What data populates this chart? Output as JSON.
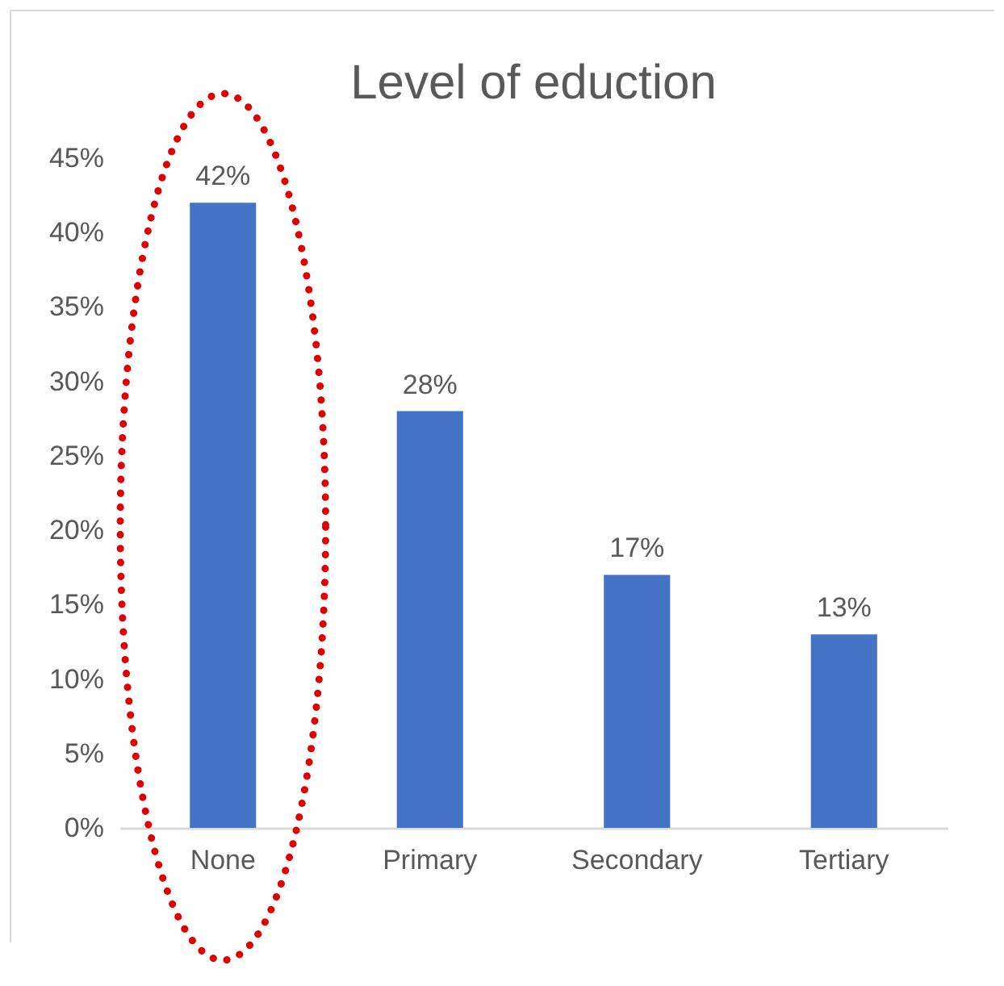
{
  "chart_data": {
    "type": "bar",
    "title": "Level of eduction",
    "categories": [
      "None",
      "Primary",
      "Secondary",
      "Tertiary"
    ],
    "values": [
      42,
      28,
      17,
      13
    ],
    "value_labels": [
      "42%",
      "28%",
      "17%",
      "13%"
    ],
    "color": "#4472c4",
    "ylim": [
      0,
      45
    ],
    "yticks": [
      {
        "value": 0,
        "label": "0%"
      },
      {
        "value": 5,
        "label": "5%"
      },
      {
        "value": 10,
        "label": "10%"
      },
      {
        "value": 15,
        "label": "15%"
      },
      {
        "value": 20,
        "label": "20%"
      },
      {
        "value": 25,
        "label": "25%"
      },
      {
        "value": 30,
        "label": "30%"
      },
      {
        "value": 35,
        "label": "35%"
      },
      {
        "value": 40,
        "label": "40%"
      },
      {
        "value": 45,
        "label": "45%"
      }
    ]
  }
}
